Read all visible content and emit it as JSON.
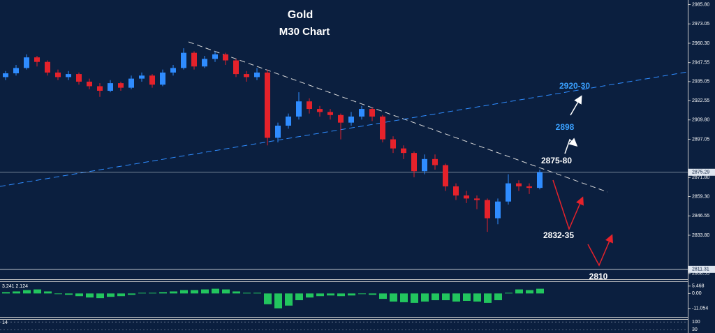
{
  "chart_data": {
    "type": "candlestick",
    "title": "Gold",
    "subtitle": "M30 Chart",
    "ylim": [
      2804.8,
      2988.8
    ],
    "yticks": [
      {
        "value": 2985.8,
        "label": "2985.80"
      },
      {
        "value": 2973.05,
        "label": "2973.05"
      },
      {
        "value": 2960.3,
        "label": "2960.30"
      },
      {
        "value": 2947.55,
        "label": "2947.55"
      },
      {
        "value": 2935.05,
        "label": "2935.05"
      },
      {
        "value": 2922.55,
        "label": "2922.55"
      },
      {
        "value": 2909.8,
        "label": "2909.80"
      },
      {
        "value": 2897.05,
        "label": "2897.05"
      },
      {
        "value": 2871.8,
        "label": "2871.80"
      },
      {
        "value": 2859.3,
        "label": "2859.30"
      },
      {
        "value": 2846.55,
        "label": "2846.55"
      },
      {
        "value": 2833.8,
        "label": "2833.80"
      },
      {
        "value": 2808.55,
        "label": "2808.55"
      }
    ],
    "price_lines": [
      {
        "value": 2875.29,
        "label": "2875.29"
      },
      {
        "value": 2811.31,
        "label": "2811.31"
      }
    ],
    "up_color": "#2f8cff",
    "down_color": "#e5222b",
    "open": [
      2938,
      2940.5,
      2944,
      2951,
      2948,
      2941,
      2938,
      2940,
      2935,
      2932,
      2929,
      2934,
      2931,
      2937,
      2939,
      2933,
      2941,
      2944,
      2954,
      2945,
      2950,
      2953,
      2949,
      2940,
      2938,
      2941,
      2898,
      2906,
      2912,
      2922,
      2917,
      2915,
      2913,
      2908,
      2912,
      2917,
      2912,
      2897,
      2891,
      2888,
      2876,
      2884,
      2880,
      2866,
      2860,
      2858,
      2857,
      2845,
      2856,
      2868,
      2866,
      2865
    ],
    "high": [
      2942,
      2946,
      2953,
      2952,
      2949,
      2943,
      2942,
      2941,
      2937,
      2934,
      2936,
      2935,
      2939,
      2941,
      2940,
      2943,
      2946,
      2957,
      2955,
      2952,
      2955,
      2954,
      2950,
      2942,
      2944,
      2943,
      2908,
      2914,
      2928,
      2924,
      2919,
      2917,
      2914,
      2915,
      2919,
      2918,
      2913,
      2899,
      2893,
      2889,
      2887,
      2887,
      2881,
      2868,
      2863,
      2860,
      2858,
      2858,
      2874,
      2870,
      2868,
      2877
    ],
    "low": [
      2936,
      2939,
      2943,
      2945,
      2939,
      2936,
      2936,
      2933,
      2930,
      2925,
      2928,
      2929,
      2930,
      2935,
      2931,
      2932,
      2939,
      2943,
      2943,
      2944,
      2948,
      2946,
      2938,
      2935,
      2936,
      2893,
      2895,
      2904,
      2910,
      2914,
      2912,
      2910,
      2897,
      2906,
      2910,
      2909,
      2895,
      2888,
      2884,
      2872,
      2874,
      2877,
      2863,
      2857,
      2855,
      2851,
      2836,
      2841,
      2854,
      2863,
      2861,
      2864
    ],
    "close": [
      2940.5,
      2944,
      2951,
      2948,
      2941,
      2938,
      2940,
      2935,
      2932,
      2929,
      2934,
      2931,
      2937,
      2939,
      2933,
      2941,
      2944,
      2954,
      2945,
      2950,
      2953,
      2949,
      2940,
      2938,
      2941,
      2898,
      2906,
      2912,
      2922,
      2917,
      2915,
      2913,
      2908,
      2912,
      2917,
      2912,
      2897,
      2891,
      2888,
      2876,
      2884,
      2880,
      2866,
      2860,
      2858,
      2857,
      2845,
      2856,
      2868,
      2866,
      2865,
      2875.3
    ],
    "annotations": [
      {
        "text": "2920-30",
        "color": "#3aa0ff"
      },
      {
        "text": "2898",
        "color": "#3aa0ff"
      },
      {
        "text": "2875-80",
        "color": "#ffffff"
      },
      {
        "text": "2832-35",
        "color": "#ffffff"
      },
      {
        "text": "2810",
        "color": "#ffffff"
      }
    ],
    "indicator": {
      "type": "bar",
      "label": "3.241 2.124",
      "color": "#22c55e",
      "ylim": [
        -17.4,
        8.46
      ],
      "yticks": [
        {
          "value": 5.468,
          "label": "5.468"
        },
        {
          "value": 0,
          "label": "0.00"
        },
        {
          "value": -11.054,
          "label": "-11.054"
        }
      ],
      "values": [
        1,
        1.5,
        2.5,
        3,
        1.5,
        -0.5,
        -1,
        -2,
        -3,
        -3.5,
        -2.5,
        -2,
        -1,
        0.5,
        0.5,
        1,
        1.5,
        2.5,
        2.5,
        3,
        3.5,
        3,
        1.5,
        0.5,
        0.5,
        -8,
        -11,
        -9,
        -5,
        -3,
        -2,
        -1.5,
        -2,
        -1.5,
        -0.5,
        -1,
        -4,
        -6,
        -6.5,
        -7,
        -6,
        -5,
        -5,
        -6,
        -5.5,
        -6,
        -7,
        -5,
        0.5,
        3,
        2.5,
        3.5
      ]
    },
    "indicator2": {
      "label": "14",
      "ylim": [
        0,
        120
      ],
      "yticks": [
        100,
        30
      ]
    }
  }
}
